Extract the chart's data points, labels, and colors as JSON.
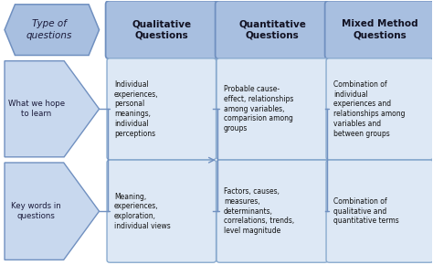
{
  "bg_color": "#ffffff",
  "header_fill": "#a8bfe0",
  "header_border": "#7090c0",
  "box_fill": "#dde8f5",
  "box_border": "#8aabcf",
  "arrow_fill": "#c8d8ee",
  "arrow_border": "#7090c0",
  "col1_header": "Type of\nquestions",
  "col2_header": "Qualitative\nQuestions",
  "col3_header": "Quantitative\nQuestions",
  "col4_header": "Mixed Method\nQuestions",
  "col1_items": [
    "What we hope\nto learn",
    "Key words in\nquestions"
  ],
  "col2_items": [
    "Individual\nexperiences,\npersonal\nmeanings,\nindividual\nperceptions",
    "Meaning,\nexperiences,\nexploration,\nindividual views"
  ],
  "col3_items": [
    "Probable cause-\neffect, relationships\namong variables,\ncomparision among\ngroups",
    "Factors, causes,\nmeasures,\ndeterminants,\ncorrelations, trends,\nlevel magnitude"
  ],
  "col4_items": [
    "Combination of\nindividual\nexperiences and\nrelationships among\nvariables and\nbetween groups",
    "Combination of\nqualitative and\nquantitative terms"
  ]
}
